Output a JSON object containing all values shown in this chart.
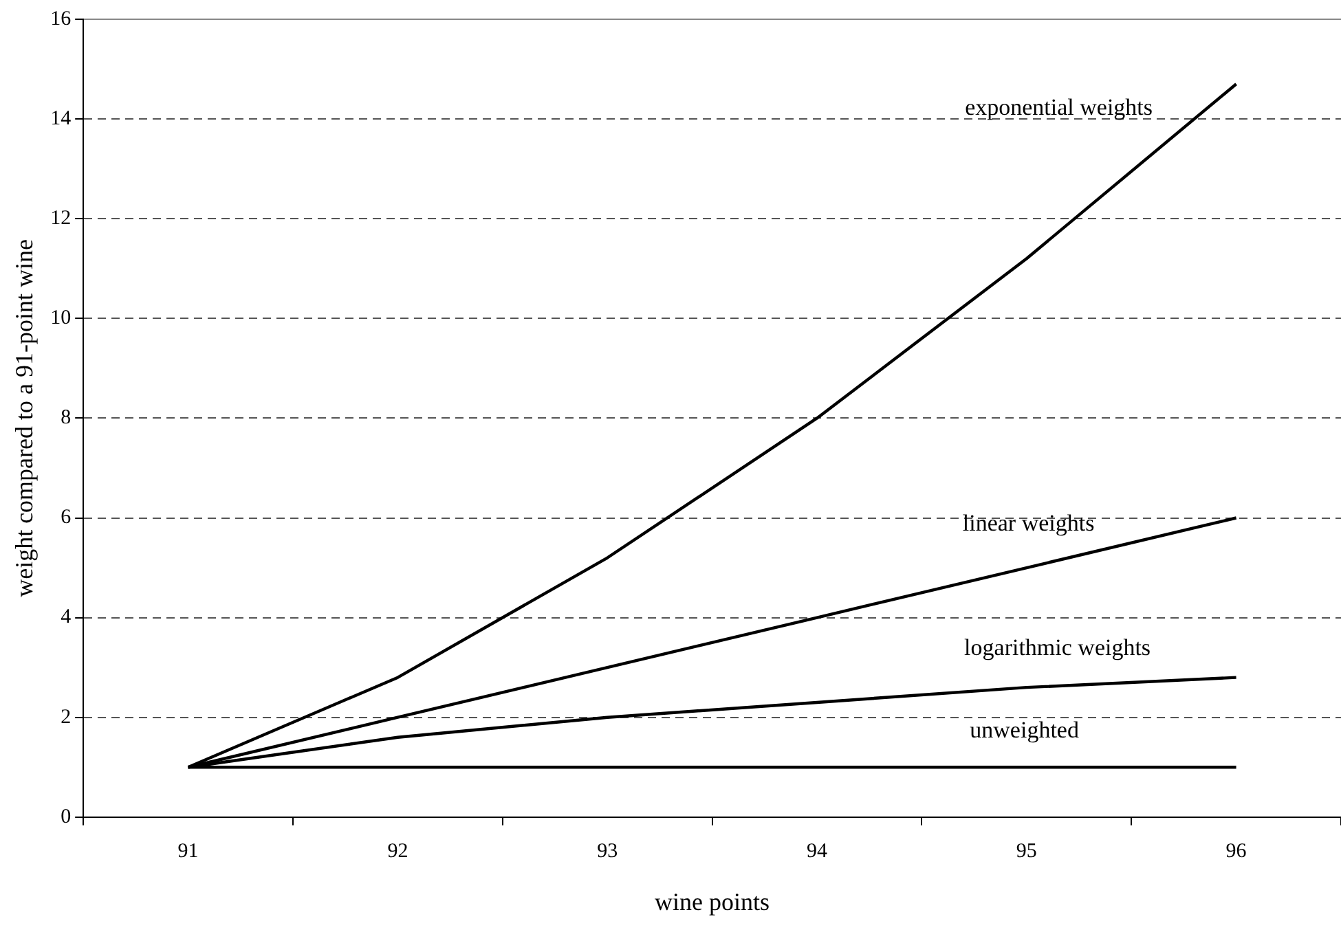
{
  "chart_data": {
    "type": "line",
    "xlabel": "wine points",
    "ylabel": "weight compared to a 91-point wine",
    "categories": [
      "91",
      "92",
      "93",
      "94",
      "95",
      "96"
    ],
    "series": [
      {
        "name": "exponential weights",
        "color": "#000000",
        "values": [
          1,
          2.8,
          5.2,
          8,
          11.2,
          14.7
        ]
      },
      {
        "name": "linear weights",
        "color": "#000000",
        "values": [
          1,
          2,
          3,
          4,
          5,
          6
        ]
      },
      {
        "name": "logarithmic weights",
        "color": "#000000",
        "values": [
          1,
          1.6,
          2,
          2.3,
          2.6,
          2.8
        ]
      },
      {
        "name": "unweighted",
        "color": "#000000",
        "values": [
          1,
          1,
          1,
          1,
          1,
          1
        ]
      }
    ],
    "ylim": [
      0,
      16
    ],
    "yticks": [
      0,
      2,
      4,
      6,
      8,
      10,
      12,
      14,
      16
    ],
    "grid": "y",
    "legend": false,
    "marker": "none",
    "line_style": "solid"
  }
}
